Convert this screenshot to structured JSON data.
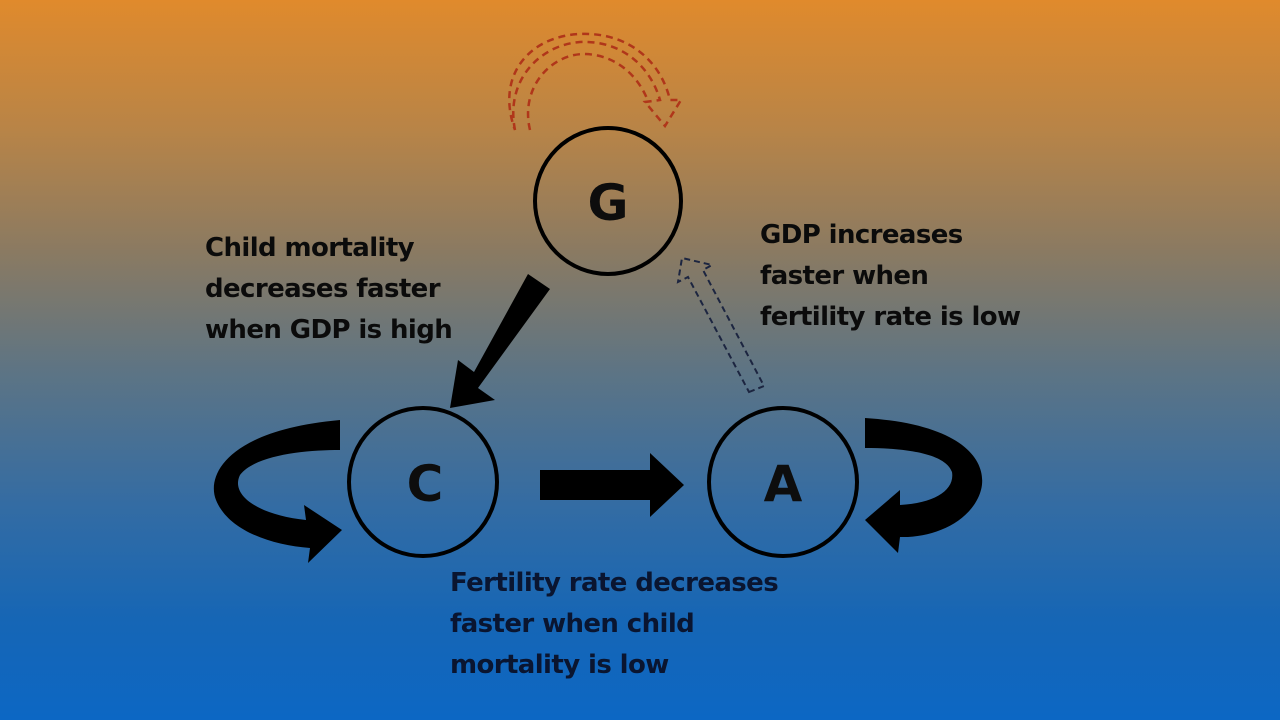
{
  "nodes": {
    "g": "G",
    "c": "C",
    "a": "A"
  },
  "captions": {
    "gdp_to_child_mortality": [
      "Child mortality",
      "decreases faster",
      "when GDP is high"
    ],
    "fertility_to_gdp": [
      "GDP increases",
      "faster when",
      "fertility rate is low"
    ],
    "child_mortality_to_fertility": [
      "Fertility rate decreases",
      "faster when child",
      "mortality is low"
    ]
  },
  "colors": {
    "background_top": "#e08a2c",
    "background_bottom": "#0c67c4",
    "strong_arrow": "#000000",
    "gdp_self_loop_dashed": "#b0361a",
    "fertility_to_gdp_dashed": "#1c2540"
  },
  "icons": {
    "gdp_self_loop": "dashed-curved-arrow-icon",
    "child_mortality_self_loop": "curved-arrow-icon",
    "fertility_self_loop": "curved-arrow-icon"
  }
}
